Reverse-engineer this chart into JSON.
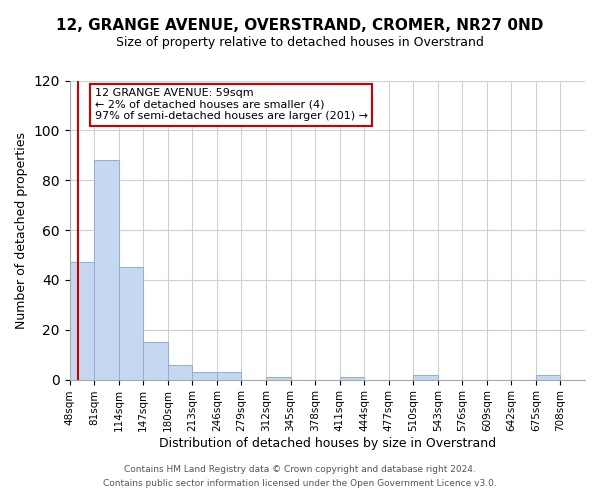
{
  "title": "12, GRANGE AVENUE, OVERSTRAND, CROMER, NR27 0ND",
  "subtitle": "Size of property relative to detached houses in Overstrand",
  "xlabel": "Distribution of detached houses by size in Overstrand",
  "ylabel": "Number of detached properties",
  "bar_labels": [
    "48sqm",
    "81sqm",
    "114sqm",
    "147sqm",
    "180sqm",
    "213sqm",
    "246sqm",
    "279sqm",
    "312sqm",
    "345sqm",
    "378sqm",
    "411sqm",
    "444sqm",
    "477sqm",
    "510sqm",
    "543sqm",
    "576sqm",
    "609sqm",
    "642sqm",
    "675sqm",
    "708sqm"
  ],
  "bar_values": [
    47,
    88,
    45,
    15,
    6,
    3,
    3,
    0,
    1,
    0,
    0,
    1,
    0,
    0,
    2,
    0,
    0,
    0,
    0,
    2,
    0
  ],
  "bar_color": "#c5d8f0",
  "bar_edge_color": "#8ab0d8",
  "property_line_x": 59,
  "bin_edges": [
    48,
    81,
    114,
    147,
    180,
    213,
    246,
    279,
    312,
    345,
    378,
    411,
    444,
    477,
    510,
    543,
    576,
    609,
    642,
    675,
    708,
    741
  ],
  "annotation_title": "12 GRANGE AVENUE: 59sqm",
  "annotation_line1": "← 2% of detached houses are smaller (4)",
  "annotation_line2": "97% of semi-detached houses are larger (201) →",
  "annotation_box_color": "#ffffff",
  "annotation_box_edge_color": "#cc0000",
  "property_line_color": "#cc0000",
  "ylim": [
    0,
    120
  ],
  "yticks": [
    0,
    20,
    40,
    60,
    80,
    100,
    120
  ],
  "footer_line1": "Contains HM Land Registry data © Crown copyright and database right 2024.",
  "footer_line2": "Contains public sector information licensed under the Open Government Licence v3.0.",
  "background_color": "#ffffff",
  "grid_color": "#d0d0d0"
}
